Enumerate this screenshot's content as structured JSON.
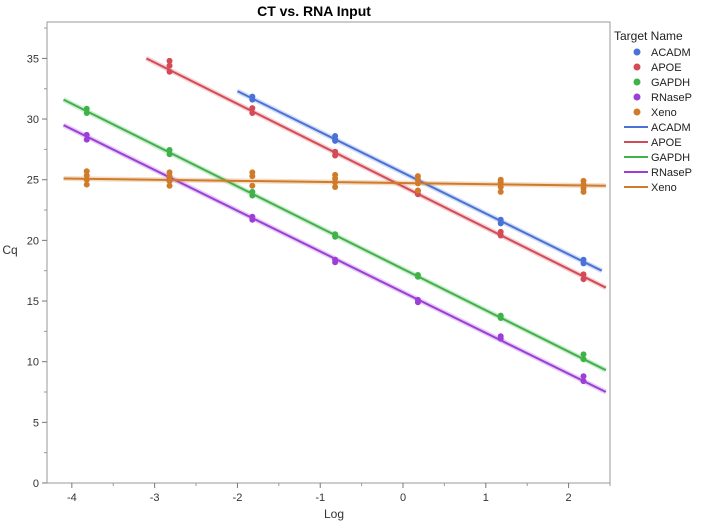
{
  "chart_data": {
    "type": "scatter",
    "title": "CT vs. RNA Input",
    "xlabel": "Log",
    "ylabel": "Cq",
    "xlim": [
      -4.3,
      2.5
    ],
    "ylim": [
      0,
      38
    ],
    "xticks": [
      -4,
      -3,
      -2,
      -1,
      0,
      1,
      2
    ],
    "yticks": [
      0,
      5,
      10,
      15,
      20,
      25,
      30,
      35
    ],
    "grid": false,
    "legend": {
      "title": "Target Name",
      "position": "right",
      "marker_entries": [
        "ACADM",
        "APOE",
        "GAPDH",
        "RNaseP",
        "Xeno"
      ],
      "line_entries": [
        "ACADM",
        "APOE",
        "GAPDH",
        "RNaseP",
        "Xeno"
      ]
    },
    "series": [
      {
        "name": "ACADM",
        "color": "#4a72d6",
        "points": [
          [
            -1.82,
            31.6
          ],
          [
            -1.82,
            31.85
          ],
          [
            -0.82,
            28.2
          ],
          [
            -0.82,
            28.6
          ],
          [
            -0.82,
            28.35
          ],
          [
            1.18,
            21.4
          ],
          [
            1.18,
            21.7
          ],
          [
            2.18,
            18.1
          ],
          [
            2.18,
            18.4
          ]
        ],
        "fit": [
          [
            -2.0,
            32.3
          ],
          [
            2.4,
            17.5
          ]
        ]
      },
      {
        "name": "APOE",
        "color": "#d24b57",
        "points": [
          [
            -2.82,
            33.9
          ],
          [
            -2.82,
            34.4
          ],
          [
            -2.82,
            34.8
          ],
          [
            -1.82,
            30.5
          ],
          [
            -1.82,
            30.9
          ],
          [
            -0.82,
            27.0
          ],
          [
            -0.82,
            27.3
          ],
          [
            0.18,
            23.8
          ],
          [
            0.18,
            24.1
          ],
          [
            1.18,
            20.4
          ],
          [
            1.18,
            20.7
          ],
          [
            2.18,
            16.8
          ],
          [
            2.18,
            17.2
          ]
        ],
        "fit": [
          [
            -3.1,
            35.0
          ],
          [
            2.45,
            16.1
          ]
        ]
      },
      {
        "name": "GAPDH",
        "color": "#3fb24a",
        "points": [
          [
            -3.82,
            30.5
          ],
          [
            -3.82,
            30.85
          ],
          [
            -2.82,
            27.1
          ],
          [
            -2.82,
            27.45
          ],
          [
            -1.82,
            23.7
          ],
          [
            -1.82,
            24.0
          ],
          [
            -0.82,
            20.3
          ],
          [
            -0.82,
            20.5
          ],
          [
            0.18,
            17.0
          ],
          [
            0.18,
            17.15
          ],
          [
            1.18,
            13.6
          ],
          [
            1.18,
            13.8
          ],
          [
            2.18,
            10.2
          ],
          [
            2.18,
            10.6
          ]
        ],
        "fit": [
          [
            -4.1,
            31.6
          ],
          [
            2.45,
            9.3
          ]
        ]
      },
      {
        "name": "RNaseP",
        "color": "#9b3fd6",
        "points": [
          [
            -3.82,
            28.3
          ],
          [
            -3.82,
            28.7
          ],
          [
            -2.82,
            24.9
          ],
          [
            -2.82,
            25.2
          ],
          [
            -1.82,
            21.7
          ],
          [
            -1.82,
            21.95
          ],
          [
            -0.82,
            18.2
          ],
          [
            -0.82,
            18.4
          ],
          [
            0.18,
            14.9
          ],
          [
            0.18,
            15.1
          ],
          [
            1.18,
            11.9
          ],
          [
            1.18,
            12.1
          ],
          [
            2.18,
            8.4
          ],
          [
            2.18,
            8.8
          ]
        ],
        "fit": [
          [
            -4.1,
            29.5
          ],
          [
            2.45,
            7.5
          ]
        ]
      },
      {
        "name": "Xeno",
        "color": "#d07b2a",
        "points": [
          [
            -3.82,
            24.6
          ],
          [
            -3.82,
            25.0
          ],
          [
            -3.82,
            25.35
          ],
          [
            -3.82,
            25.7
          ],
          [
            -2.82,
            24.5
          ],
          [
            -2.82,
            24.9
          ],
          [
            -2.82,
            25.3
          ],
          [
            -2.82,
            25.6
          ],
          [
            -1.82,
            24.5
          ],
          [
            -1.82,
            25.3
          ],
          [
            -1.82,
            25.6
          ],
          [
            -0.82,
            24.4
          ],
          [
            -0.82,
            24.8
          ],
          [
            -0.82,
            25.1
          ],
          [
            -0.82,
            25.4
          ],
          [
            0.18,
            24.1
          ],
          [
            0.18,
            24.7
          ],
          [
            0.18,
            25.0
          ],
          [
            0.18,
            25.3
          ],
          [
            1.18,
            24.0
          ],
          [
            1.18,
            24.4
          ],
          [
            1.18,
            24.8
          ],
          [
            1.18,
            25.0
          ],
          [
            2.18,
            24.0
          ],
          [
            2.18,
            24.3
          ],
          [
            2.18,
            24.6
          ],
          [
            2.18,
            24.9
          ]
        ],
        "fit": [
          [
            -4.1,
            25.1
          ],
          [
            2.45,
            24.5
          ]
        ]
      }
    ]
  }
}
